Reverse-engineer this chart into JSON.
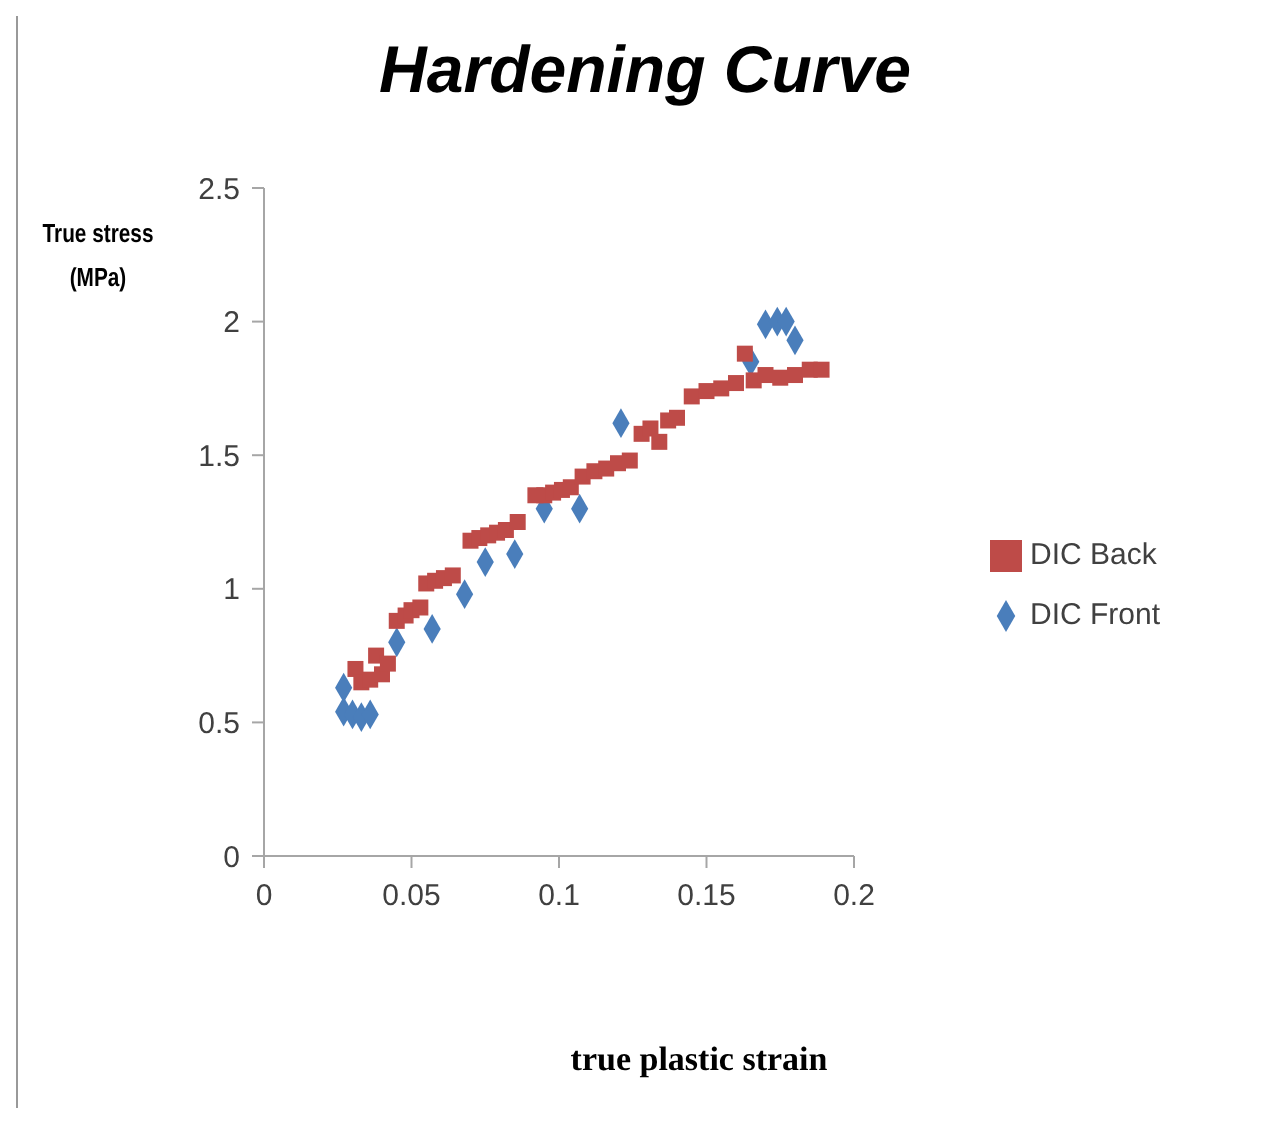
{
  "chart_data": {
    "type": "scatter",
    "title": "Hardening Curve",
    "xlabel": "true plastic strain",
    "ylabel": "True stress (MPa)",
    "xlim": [
      0,
      0.2
    ],
    "xticks": [
      0,
      0.05,
      0.1,
      0.15,
      0.2
    ],
    "ylim": [
      0,
      2.5
    ],
    "yticks": [
      0,
      0.5,
      1,
      1.5,
      2,
      2.5
    ],
    "grid": false,
    "legend": "right",
    "series": [
      {
        "name": "DIC Front",
        "color": "#4a7ebb",
        "marker": "diamond",
        "x": [
          0.027,
          0.03,
          0.033,
          0.036,
          0.027,
          0.045,
          0.057,
          0.068,
          0.075,
          0.085,
          0.095,
          0.107,
          0.121,
          0.165,
          0.17,
          0.174,
          0.177,
          0.18
        ],
        "values": [
          0.54,
          0.53,
          0.52,
          0.53,
          0.63,
          0.8,
          0.85,
          0.98,
          1.1,
          1.13,
          1.3,
          1.3,
          1.62,
          1.85,
          1.99,
          2.0,
          2.0,
          1.93
        ]
      },
      {
        "name": "DIC Back",
        "color": "#be4b48",
        "marker": "square",
        "x": [
          0.031,
          0.033,
          0.036,
          0.038,
          0.04,
          0.042,
          0.045,
          0.048,
          0.05,
          0.053,
          0.055,
          0.058,
          0.061,
          0.064,
          0.07,
          0.073,
          0.076,
          0.079,
          0.082,
          0.086,
          0.092,
          0.095,
          0.098,
          0.101,
          0.104,
          0.108,
          0.112,
          0.116,
          0.12,
          0.124,
          0.128,
          0.131,
          0.134,
          0.137,
          0.14,
          0.145,
          0.15,
          0.155,
          0.16,
          0.163,
          0.166,
          0.17,
          0.175,
          0.18,
          0.185,
          0.189
        ],
        "values": [
          0.7,
          0.65,
          0.66,
          0.75,
          0.68,
          0.72,
          0.88,
          0.9,
          0.92,
          0.93,
          1.02,
          1.03,
          1.04,
          1.05,
          1.18,
          1.19,
          1.2,
          1.21,
          1.22,
          1.25,
          1.35,
          1.35,
          1.36,
          1.37,
          1.38,
          1.42,
          1.44,
          1.45,
          1.47,
          1.48,
          1.58,
          1.6,
          1.55,
          1.63,
          1.64,
          1.72,
          1.74,
          1.75,
          1.77,
          1.88,
          1.78,
          1.8,
          1.79,
          1.8,
          1.82,
          1.82
        ]
      }
    ]
  }
}
